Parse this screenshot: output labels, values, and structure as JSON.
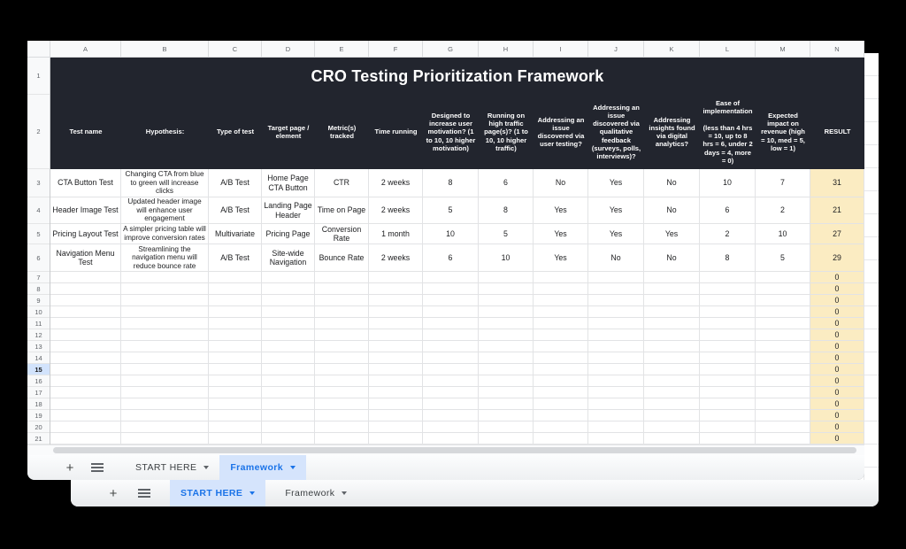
{
  "colors": {
    "banner": "#22252e",
    "result_fill": "#fbecc2",
    "accent_blue": "#1a73e8",
    "active_tab_chip": "#d5e4fc"
  },
  "icons": {
    "plus": "+"
  },
  "sheet": {
    "title": "CRO Testing Prioritization Framework",
    "column_letters": [
      "A",
      "B",
      "C",
      "D",
      "E",
      "F",
      "G",
      "H",
      "I",
      "J",
      "K",
      "L",
      "M",
      "N"
    ],
    "row_numbers": [
      "1",
      "2",
      "3",
      "4",
      "5",
      "6",
      "7",
      "8",
      "9",
      "10",
      "11",
      "12",
      "13",
      "14",
      "15",
      "16",
      "17",
      "18",
      "19",
      "20",
      "21"
    ],
    "highlighted_row": "15",
    "headers": [
      "Test name",
      "Hypothesis:",
      "Type of test",
      "Target page / element",
      "Metric(s) tracked",
      "Time running",
      "Designed to increase user motivation? (1 to 10, 10 higher motivation)",
      "Running on high traffic page(s)? (1 to 10, 10 higher traffic)",
      "Addressing an issue discovered via user testing?",
      "Addressing an issue discovered via qualitative feedback (surveys, polls, interviews)?",
      "Addressing insights found via digital analytics?",
      "Ease of implementation\n\n(less than 4 hrs = 10, up to 8 hrs = 6, under 2 days = 4, more = 0)",
      "Expected impact on revenue (high = 10, med = 5, low = 1)",
      "RESULT"
    ],
    "data_rows": [
      [
        "CTA Button Test",
        "Changing CTA from blue to green will increase clicks",
        "A/B Test",
        "Home Page CTA Button",
        "CTR",
        "2 weeks",
        "8",
        "6",
        "No",
        "Yes",
        "No",
        "10",
        "7",
        "31"
      ],
      [
        "Header Image Test",
        "Updated header image will enhance user engagement",
        "A/B Test",
        "Landing Page Header",
        "Time on Page",
        "2 weeks",
        "5",
        "8",
        "Yes",
        "Yes",
        "No",
        "6",
        "2",
        "21"
      ],
      [
        "Pricing Layout Test",
        "A simpler pricing table will improve conversion rates",
        "Multivariate",
        "Pricing Page",
        "Conversion Rate",
        "1 month",
        "10",
        "5",
        "Yes",
        "Yes",
        "Yes",
        "2",
        "10",
        "27"
      ],
      [
        "Navigation Menu Test",
        "Streamlining the navigation menu will reduce bounce rate",
        "A/B Test",
        "Site-wide Navigation",
        "Bounce Rate",
        "2 weeks",
        "6",
        "10",
        "Yes",
        "No",
        "No",
        "8",
        "5",
        "29"
      ]
    ],
    "empty_rows_result_value": "0"
  },
  "front_window_tabs": {
    "tabs": [
      {
        "label": "START HERE",
        "active": false
      },
      {
        "label": "Framework",
        "active": true
      }
    ]
  },
  "back_window_tabs": {
    "tabs": [
      {
        "label": "START HERE",
        "active": true
      },
      {
        "label": "Framework",
        "active": false
      }
    ]
  }
}
